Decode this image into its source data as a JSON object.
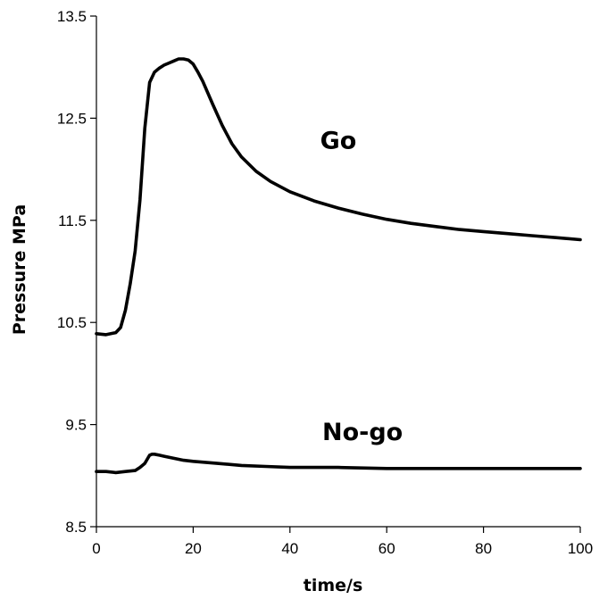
{
  "chart_data": {
    "type": "line",
    "title": "",
    "xlabel": "time/s",
    "ylabel": "Pressure MPa",
    "xlim": [
      0,
      100
    ],
    "ylim": [
      8.5,
      13.5
    ],
    "x_ticks": [
      0,
      20,
      40,
      60,
      80,
      100
    ],
    "y_ticks": [
      8.5,
      9.5,
      10.5,
      11.5,
      12.5,
      13.5
    ],
    "x_tick_labels": [
      "0",
      "20",
      "40",
      "60",
      "80",
      "100"
    ],
    "y_tick_labels": [
      "8.5",
      "9.5",
      "10.5",
      "11.5",
      "12.5",
      "13.5"
    ],
    "grid": false,
    "series": [
      {
        "name": "Go",
        "label_at": [
          50,
          12.2
        ],
        "x": [
          0,
          2,
          4,
          5,
          6,
          7,
          8,
          9,
          10,
          11,
          12,
          13,
          14,
          15,
          16,
          17,
          18,
          19,
          20,
          21,
          22,
          24,
          26,
          28,
          30,
          33,
          36,
          40,
          45,
          50,
          55,
          60,
          65,
          70,
          75,
          80,
          85,
          90,
          95,
          100
        ],
        "y": [
          10.39,
          10.38,
          10.4,
          10.45,
          10.62,
          10.88,
          11.2,
          11.7,
          12.4,
          12.85,
          12.95,
          12.99,
          13.02,
          13.04,
          13.06,
          13.08,
          13.08,
          13.07,
          13.03,
          12.95,
          12.86,
          12.64,
          12.43,
          12.25,
          12.12,
          11.98,
          11.88,
          11.78,
          11.69,
          11.62,
          11.56,
          11.51,
          11.47,
          11.44,
          11.41,
          11.39,
          11.37,
          11.35,
          11.33,
          11.31
        ]
      },
      {
        "name": "No-go",
        "label_at": [
          55,
          9.35
        ],
        "x": [
          0,
          2,
          4,
          6,
          8,
          9,
          10,
          10.5,
          11,
          11.5,
          12,
          13,
          14,
          16,
          18,
          20,
          25,
          30,
          35,
          40,
          50,
          60,
          70,
          80,
          90,
          100
        ],
        "y": [
          9.04,
          9.04,
          9.03,
          9.04,
          9.05,
          9.08,
          9.12,
          9.16,
          9.2,
          9.21,
          9.21,
          9.2,
          9.19,
          9.17,
          9.15,
          9.14,
          9.12,
          9.1,
          9.09,
          9.08,
          9.08,
          9.07,
          9.07,
          9.07,
          9.07,
          9.07
        ]
      }
    ]
  }
}
